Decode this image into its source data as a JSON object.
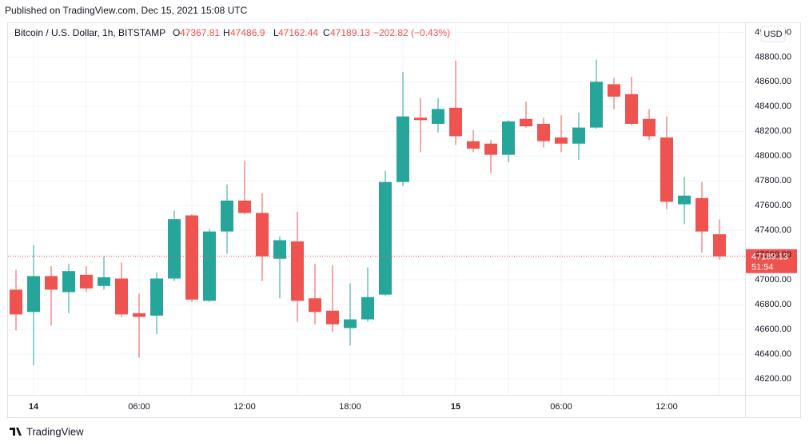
{
  "header": {
    "text": "Published on TradingView.com, Dec 15, 2021 15:08 UTC"
  },
  "footer": {
    "brand": "TradingView"
  },
  "chart_data": {
    "type": "candlestick",
    "title": "Bitcoin / U.S. Dollar, 1h, BITSTAMP",
    "ohlc_labels": [
      "O",
      "H",
      "L",
      "C"
    ],
    "change": "−202.82 (−0.43%)",
    "currency": "USD",
    "countdown": "51:54",
    "up_color": "#26a69a",
    "down_color": "#ef5350",
    "grid": true,
    "categories": [
      null,
      "14",
      null,
      null,
      null,
      null,
      null,
      "06:00",
      null,
      null,
      null,
      null,
      null,
      "12:00",
      null,
      null,
      null,
      null,
      null,
      "18:00",
      null,
      null,
      null,
      null,
      null,
      "15",
      null,
      null,
      null,
      null,
      null,
      "06:00",
      null,
      null,
      null,
      null,
      null,
      "12:00",
      null,
      null,
      null
    ],
    "open": [
      46920,
      46740,
      47030,
      46900,
      47040,
      46950,
      47010,
      46730,
      46710,
      47010,
      47520,
      46830,
      47390,
      47640,
      47540,
      47170,
      47310,
      46850,
      46750,
      46610,
      46680,
      46880,
      47790,
      48310,
      48260,
      48390,
      48120,
      48100,
      48010,
      48300,
      48260,
      48150,
      48100,
      48230,
      48580,
      48500,
      48300,
      48150,
      47610,
      47660,
      47367.81
    ],
    "high": [
      47080,
      47280,
      47110,
      47130,
      47110,
      47190,
      47140,
      46890,
      47060,
      47560,
      47530,
      47410,
      47770,
      47960,
      47700,
      47350,
      47550,
      47130,
      47120,
      46970,
      47100,
      47880,
      48680,
      48470,
      48470,
      48770,
      48210,
      48130,
      48290,
      48440,
      48310,
      48330,
      48350,
      48780,
      48630,
      48640,
      48380,
      48320,
      47830,
      47790,
      47486.9
    ],
    "low": [
      46590,
      46310,
      46630,
      46730,
      46900,
      46920,
      46700,
      46370,
      46560,
      46990,
      46820,
      46820,
      47210,
      47530,
      46990,
      46850,
      46660,
      46640,
      46580,
      46470,
      46660,
      46870,
      47760,
      48030,
      48190,
      48090,
      48030,
      47860,
      47950,
      48230,
      48070,
      48030,
      47970,
      48220,
      48380,
      48250,
      48130,
      47570,
      47450,
      47220,
      47162.44
    ],
    "close": [
      46720,
      47030,
      46920,
      47070,
      46930,
      47020,
      46720,
      46700,
      47010,
      47490,
      46840,
      47390,
      47640,
      47540,
      47190,
      47320,
      46830,
      46740,
      46640,
      46680,
      46860,
      47790,
      48320,
      48290,
      48380,
      48160,
      48060,
      48010,
      48280,
      48240,
      48120,
      48100,
      48230,
      48600,
      48480,
      48260,
      48160,
      47630,
      47680,
      47390,
      47189.13
    ],
    "ylim": [
      46070,
      49080
    ],
    "yticks": [
      {
        "value": 46200,
        "label": "46200.00"
      },
      {
        "value": 46400,
        "label": "46400.00"
      },
      {
        "value": 46600,
        "label": "46600.00"
      },
      {
        "value": 46800,
        "label": "46800.00"
      },
      {
        "value": 47000,
        "label": "47000.00"
      },
      {
        "value": 47200,
        "label": "47200.00"
      },
      {
        "value": 47400,
        "label": "47400.00"
      },
      {
        "value": 47600,
        "label": "47600.00"
      },
      {
        "value": 47800,
        "label": "47800.00"
      },
      {
        "value": 48000,
        "label": "48000.00"
      },
      {
        "value": 48200,
        "label": "48200.00"
      },
      {
        "value": 48400,
        "label": "48400.00"
      },
      {
        "value": 48600,
        "label": "48600.00"
      },
      {
        "value": 48800,
        "label": "48800.00"
      },
      {
        "value": 49000,
        "label": "49000.00"
      }
    ]
  }
}
